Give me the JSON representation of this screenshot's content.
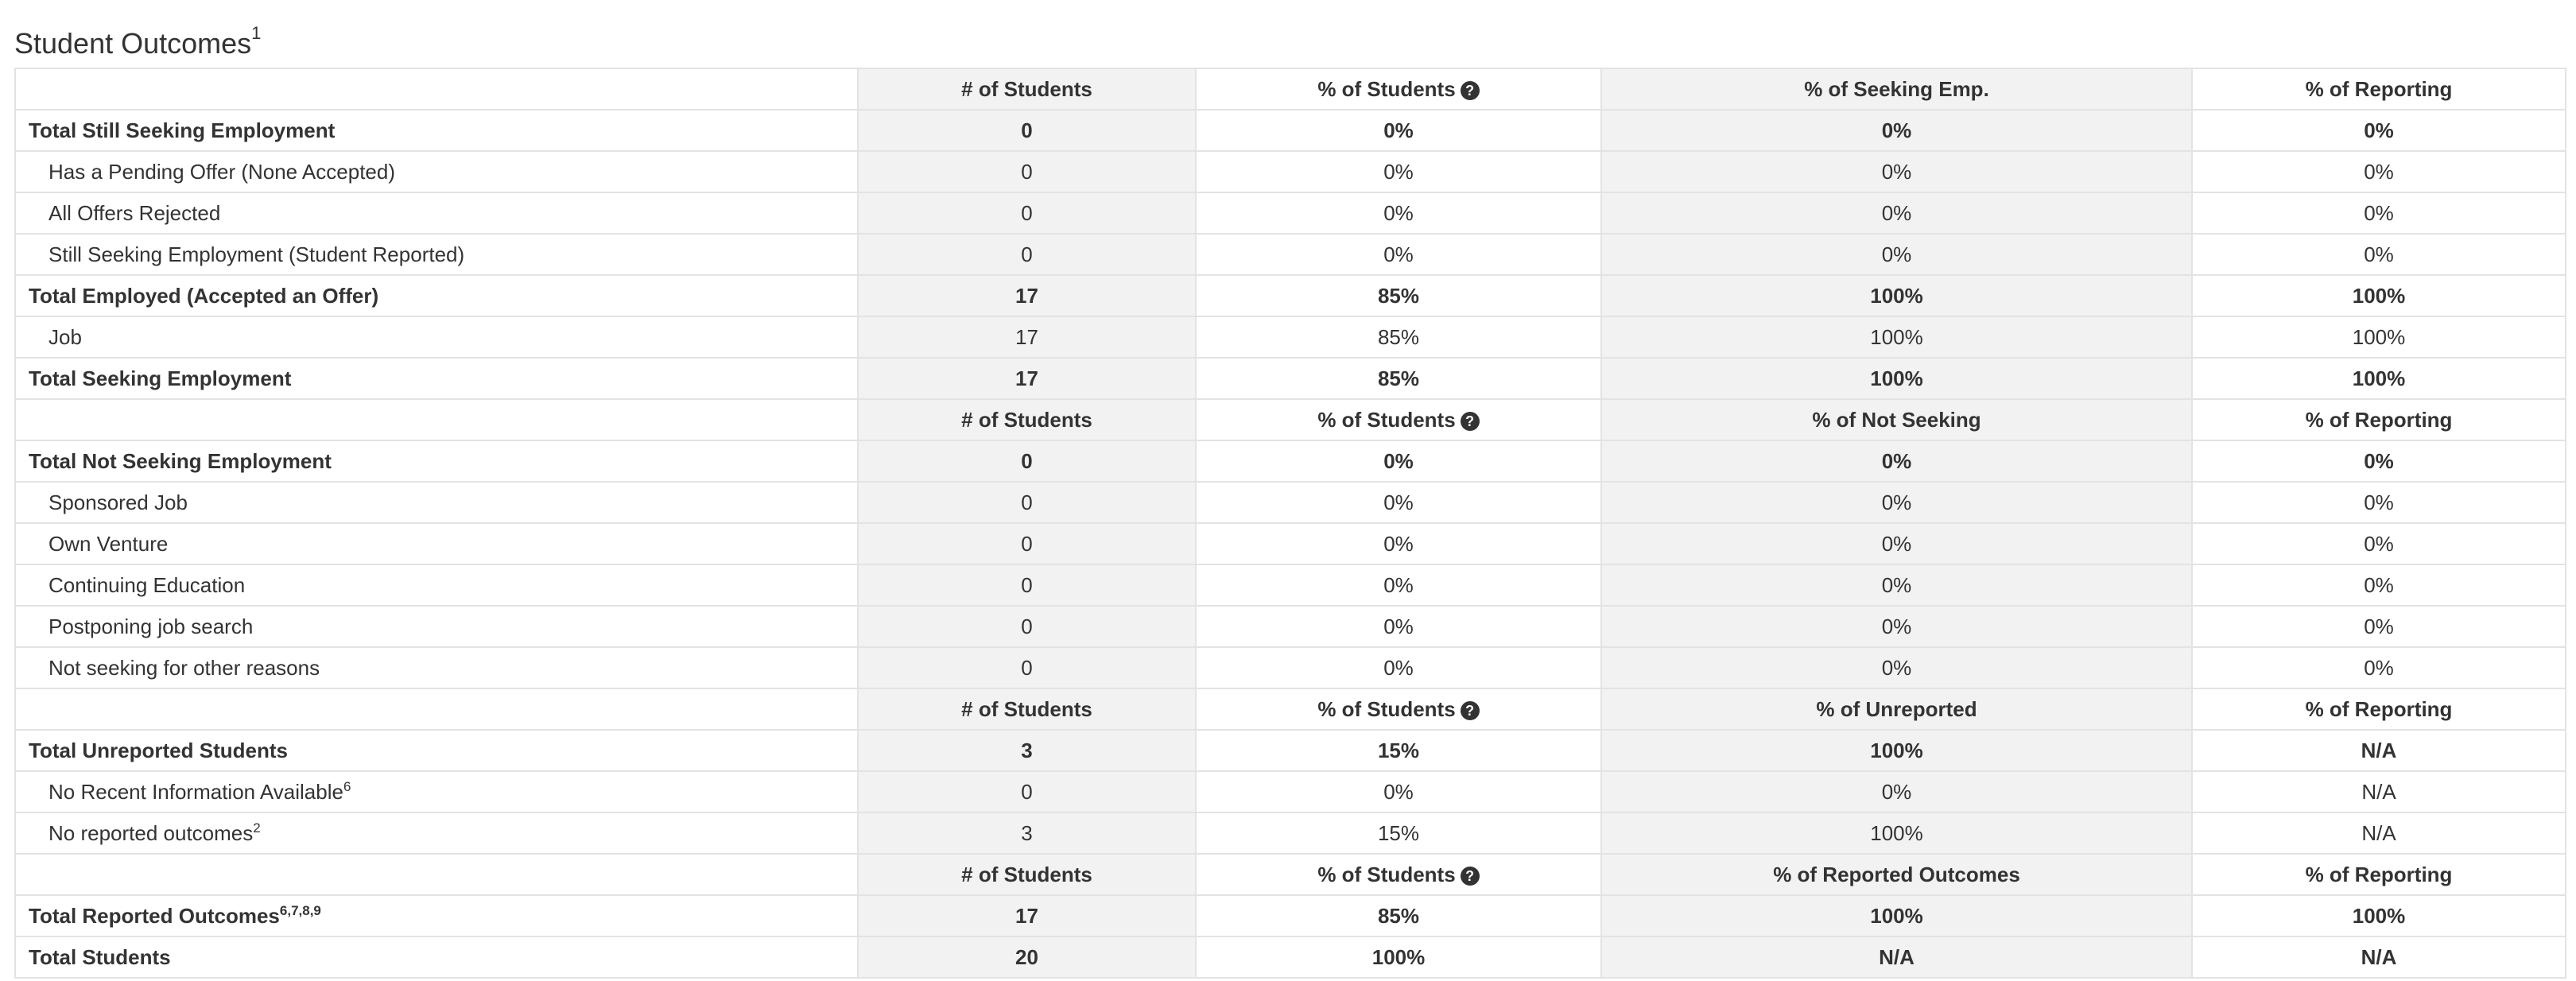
{
  "page": {
    "title": "Student Outcomes",
    "title_sup": "1"
  },
  "icons": {
    "help": "question-circle-icon"
  },
  "sections": [
    {
      "headers": [
        "# of Students",
        "% of Students",
        "% of Seeking Emp.",
        "% of Reporting"
      ],
      "rows": [
        {
          "label": "Total Still Seeking Employment",
          "sup": "",
          "bold": true,
          "values": [
            "0",
            "0%",
            "0%",
            "0%"
          ]
        },
        {
          "label": "Has a Pending Offer (None Accepted)",
          "sup": "",
          "bold": false,
          "values": [
            "0",
            "0%",
            "0%",
            "0%"
          ]
        },
        {
          "label": "All Offers Rejected",
          "sup": "",
          "bold": false,
          "values": [
            "0",
            "0%",
            "0%",
            "0%"
          ]
        },
        {
          "label": "Still Seeking Employment (Student Reported)",
          "sup": "",
          "bold": false,
          "values": [
            "0",
            "0%",
            "0%",
            "0%"
          ]
        },
        {
          "label": "Total Employed (Accepted an Offer)",
          "sup": "",
          "bold": true,
          "values": [
            "17",
            "85%",
            "100%",
            "100%"
          ]
        },
        {
          "label": "Job",
          "sup": "",
          "bold": false,
          "values": [
            "17",
            "85%",
            "100%",
            "100%"
          ]
        },
        {
          "label": "Total Seeking Employment",
          "sup": "",
          "bold": true,
          "values": [
            "17",
            "85%",
            "100%",
            "100%"
          ]
        }
      ]
    },
    {
      "headers": [
        "# of Students",
        "% of Students",
        "% of Not Seeking",
        "% of Reporting"
      ],
      "rows": [
        {
          "label": "Total Not Seeking Employment",
          "sup": "",
          "bold": true,
          "values": [
            "0",
            "0%",
            "0%",
            "0%"
          ]
        },
        {
          "label": "Sponsored Job",
          "sup": "",
          "bold": false,
          "values": [
            "0",
            "0%",
            "0%",
            "0%"
          ]
        },
        {
          "label": "Own Venture",
          "sup": "",
          "bold": false,
          "values": [
            "0",
            "0%",
            "0%",
            "0%"
          ]
        },
        {
          "label": "Continuing Education",
          "sup": "",
          "bold": false,
          "values": [
            "0",
            "0%",
            "0%",
            "0%"
          ]
        },
        {
          "label": "Postponing job search",
          "sup": "",
          "bold": false,
          "values": [
            "0",
            "0%",
            "0%",
            "0%"
          ]
        },
        {
          "label": "Not seeking for other reasons",
          "sup": "",
          "bold": false,
          "values": [
            "0",
            "0%",
            "0%",
            "0%"
          ]
        }
      ]
    },
    {
      "headers": [
        "# of Students",
        "% of Students",
        "% of Unreported",
        "% of Reporting"
      ],
      "rows": [
        {
          "label": "Total Unreported Students",
          "sup": "",
          "bold": true,
          "values": [
            "3",
            "15%",
            "100%",
            "N/A"
          ]
        },
        {
          "label": "No Recent Information Available",
          "sup": "6",
          "bold": false,
          "values": [
            "0",
            "0%",
            "0%",
            "N/A"
          ]
        },
        {
          "label": "No reported outcomes",
          "sup": "2",
          "bold": false,
          "values": [
            "3",
            "15%",
            "100%",
            "N/A"
          ]
        }
      ]
    },
    {
      "headers": [
        "# of Students",
        "% of Students",
        "% of Reported Outcomes",
        "% of Reporting"
      ],
      "rows": [
        {
          "label": "Total Reported Outcomes",
          "sup": "6,7,8,9",
          "bold": true,
          "values": [
            "17",
            "85%",
            "100%",
            "100%"
          ]
        },
        {
          "label": "Total Students",
          "sup": "",
          "bold": true,
          "values": [
            "20",
            "100%",
            "N/A",
            "N/A"
          ]
        }
      ]
    }
  ]
}
